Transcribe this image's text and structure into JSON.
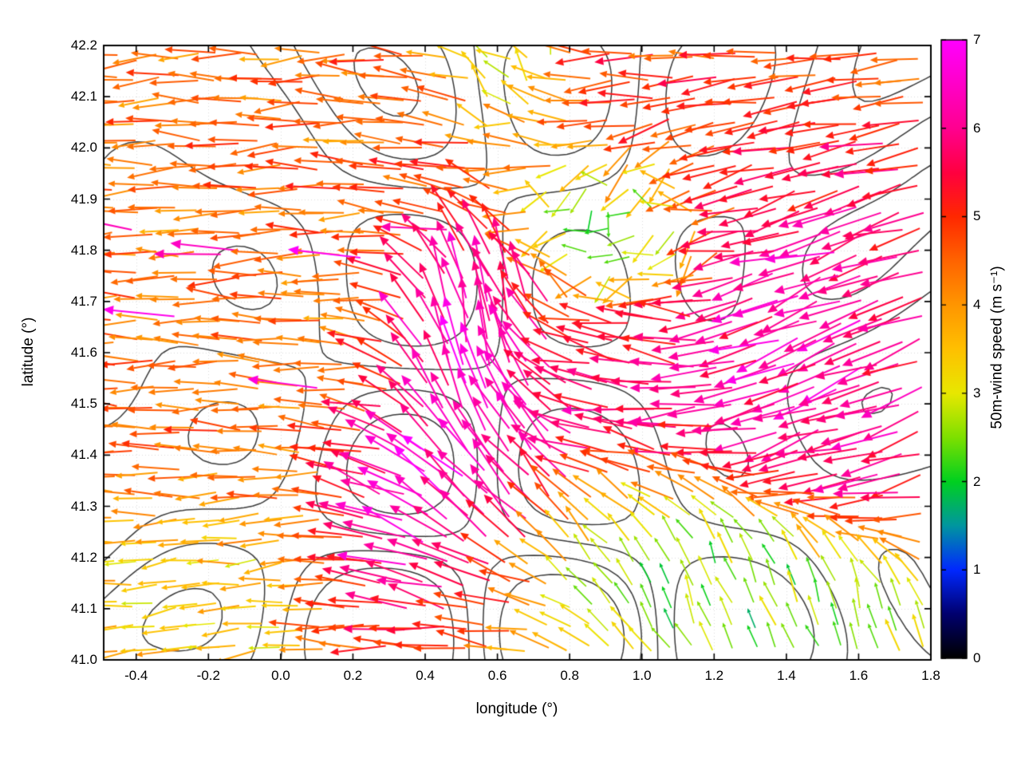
{
  "chart_data": {
    "type": "quiver",
    "title": "",
    "xlabel": "longitude (°)",
    "ylabel": "latitude (°)",
    "xlim": [
      -0.49,
      1.8
    ],
    "ylim": [
      41.0,
      42.2
    ],
    "x_ticks": {
      "values": [
        -0.4,
        -0.2,
        0.0,
        0.2,
        0.4,
        0.6,
        0.8,
        1.0,
        1.2,
        1.4,
        1.6,
        1.8
      ],
      "labels": [
        "-0.4",
        "-0.2",
        "0.0",
        "0.2",
        "0.4",
        "0.6",
        "0.8",
        "1.0",
        "1.2",
        "1.4",
        "1.6",
        "1.8"
      ]
    },
    "y_ticks": {
      "values": [
        41.0,
        41.1,
        41.2,
        41.3,
        41.4,
        41.5,
        41.6,
        41.7,
        41.8,
        41.9,
        42.0,
        42.1,
        42.2
      ],
      "labels": [
        "41.0",
        "41.1",
        "41.2",
        "41.3",
        "41.4",
        "41.5",
        "41.6",
        "41.7",
        "41.8",
        "41.9",
        "42.0",
        "42.1",
        "42.2"
      ]
    },
    "grid": {
      "show": true,
      "style": "dotted",
      "color": "rgba(0,0,0,0.15)"
    },
    "colorbar": {
      "label": "50m-wind speed (m s⁻¹)",
      "min": 0,
      "max": 7,
      "ticks": {
        "values": [
          0,
          1,
          2,
          3,
          4,
          5,
          6,
          7
        ],
        "labels": [
          "0",
          "1",
          "2",
          "3",
          "4",
          "5",
          "6",
          "7"
        ]
      },
      "colormap_stops": [
        [
          0,
          "#000000"
        ],
        [
          0.5,
          "#00006e"
        ],
        [
          1,
          "#0028ff"
        ],
        [
          1.5,
          "#0096a0"
        ],
        [
          2,
          "#00d020"
        ],
        [
          2.5,
          "#7ee000"
        ],
        [
          3,
          "#e8e800"
        ],
        [
          3.5,
          "#ffc000"
        ],
        [
          4,
          "#ff9600"
        ],
        [
          4.5,
          "#ff6400"
        ],
        [
          5,
          "#ff2800"
        ],
        [
          5.5,
          "#ff0040"
        ],
        [
          6,
          "#ff0090"
        ],
        [
          6.5,
          "#ff00c8"
        ],
        [
          7,
          "#ff00ff"
        ]
      ]
    },
    "contour": {
      "color": "#3a3a3a",
      "line_width": 1.5,
      "seed": 11,
      "harmonics": 8,
      "level_fracs": [
        0.28,
        0.42,
        0.55,
        0.68
      ]
    },
    "wind_field": {
      "base": {
        "dir_deg": 180,
        "speed_ms": 4.2,
        "weight": 0.35
      },
      "regions": [
        {
          "x": -0.25,
          "y": 41.95,
          "rx": 0.45,
          "ry": 0.3,
          "dir": 183,
          "spd": 4.4,
          "w": 1.3
        },
        {
          "x": -0.3,
          "y": 41.55,
          "rx": 0.4,
          "ry": 0.3,
          "dir": 178,
          "spd": 4.6,
          "w": 1.3
        },
        {
          "x": -0.25,
          "y": 41.12,
          "rx": 0.4,
          "ry": 0.16,
          "dir": 188,
          "spd": 3.1,
          "w": 1.6
        },
        {
          "x": 0.1,
          "y": 41.45,
          "rx": 0.25,
          "ry": 0.25,
          "dir": 175,
          "spd": 4.0,
          "w": 1.0
        },
        {
          "x": 0.42,
          "y": 41.3,
          "rx": 0.2,
          "ry": 0.14,
          "dir": 152,
          "spd": 6.9,
          "w": 2.6
        },
        {
          "x": 0.55,
          "y": 41.55,
          "rx": 0.17,
          "ry": 0.22,
          "dir": 93,
          "spd": 6.7,
          "w": 2.6
        },
        {
          "x": 0.68,
          "y": 41.42,
          "rx": 0.14,
          "ry": 0.14,
          "dir": 118,
          "spd": 6.3,
          "w": 2.0
        },
        {
          "x": 0.62,
          "y": 41.72,
          "rx": 0.15,
          "ry": 0.12,
          "dir": 105,
          "spd": 6.0,
          "w": 1.6
        },
        {
          "x": 0.95,
          "y": 41.48,
          "rx": 0.28,
          "ry": 0.14,
          "dir": 172,
          "spd": 6.2,
          "w": 1.7
        },
        {
          "x": 0.95,
          "y": 41.65,
          "rx": 0.2,
          "ry": 0.12,
          "dir": 160,
          "spd": 5.2,
          "w": 1.4
        },
        {
          "x": 1.5,
          "y": 41.62,
          "rx": 0.3,
          "ry": 0.3,
          "dir": 207,
          "spd": 6.6,
          "w": 1.9
        },
        {
          "x": 1.35,
          "y": 41.85,
          "rx": 0.25,
          "ry": 0.15,
          "dir": 195,
          "spd": 5.6,
          "w": 1.4
        },
        {
          "x": 1.68,
          "y": 41.35,
          "rx": 0.15,
          "ry": 0.15,
          "dir": 195,
          "spd": 5.8,
          "w": 1.5
        },
        {
          "x": 1.2,
          "y": 41.14,
          "rx": 0.42,
          "ry": 0.16,
          "dir": 105,
          "spd": 2.0,
          "w": 2.4
        },
        {
          "x": 1.62,
          "y": 41.08,
          "rx": 0.2,
          "ry": 0.12,
          "dir": 92,
          "spd": 2.4,
          "w": 1.8
        },
        {
          "x": 0.95,
          "y": 41.85,
          "rx": 0.22,
          "ry": 0.12,
          "dir": 230,
          "spd": 0.9,
          "w": 2.0,
          "chaos": 1
        },
        {
          "x": 0.66,
          "y": 42.14,
          "rx": 0.12,
          "ry": 0.09,
          "dir": 100,
          "spd": 1.4,
          "w": 1.6,
          "chaos": 1
        },
        {
          "x": 0.55,
          "y": 42.05,
          "rx": 0.45,
          "ry": 0.17,
          "dir": 172,
          "spd": 4.8,
          "w": 1.1
        },
        {
          "x": 1.15,
          "y": 42.05,
          "rx": 0.35,
          "ry": 0.18,
          "dir": 186,
          "spd": 5.1,
          "w": 1.1
        },
        {
          "x": 0.62,
          "y": 41.07,
          "rx": 0.25,
          "ry": 0.1,
          "dir": 180,
          "spd": 4.7,
          "w": 1.5
        },
        {
          "x": 0.35,
          "y": 41.12,
          "rx": 0.2,
          "ry": 0.08,
          "dir": 168,
          "spd": 6.4,
          "w": 1.4
        },
        {
          "x": 1.0,
          "y": 41.3,
          "rx": 0.15,
          "ry": 0.1,
          "dir": 150,
          "spd": 3.4,
          "w": 1.2
        }
      ],
      "arrow_grid": {
        "cols": 40,
        "rows": 28,
        "seed": 12345,
        "pos_jitter": 0.35,
        "dir_jitter_deg": 15,
        "speed_jitter_ms": 0.8,
        "anomaly_rate": 0.02,
        "anomaly_speed_ms": 6.6
      }
    }
  }
}
